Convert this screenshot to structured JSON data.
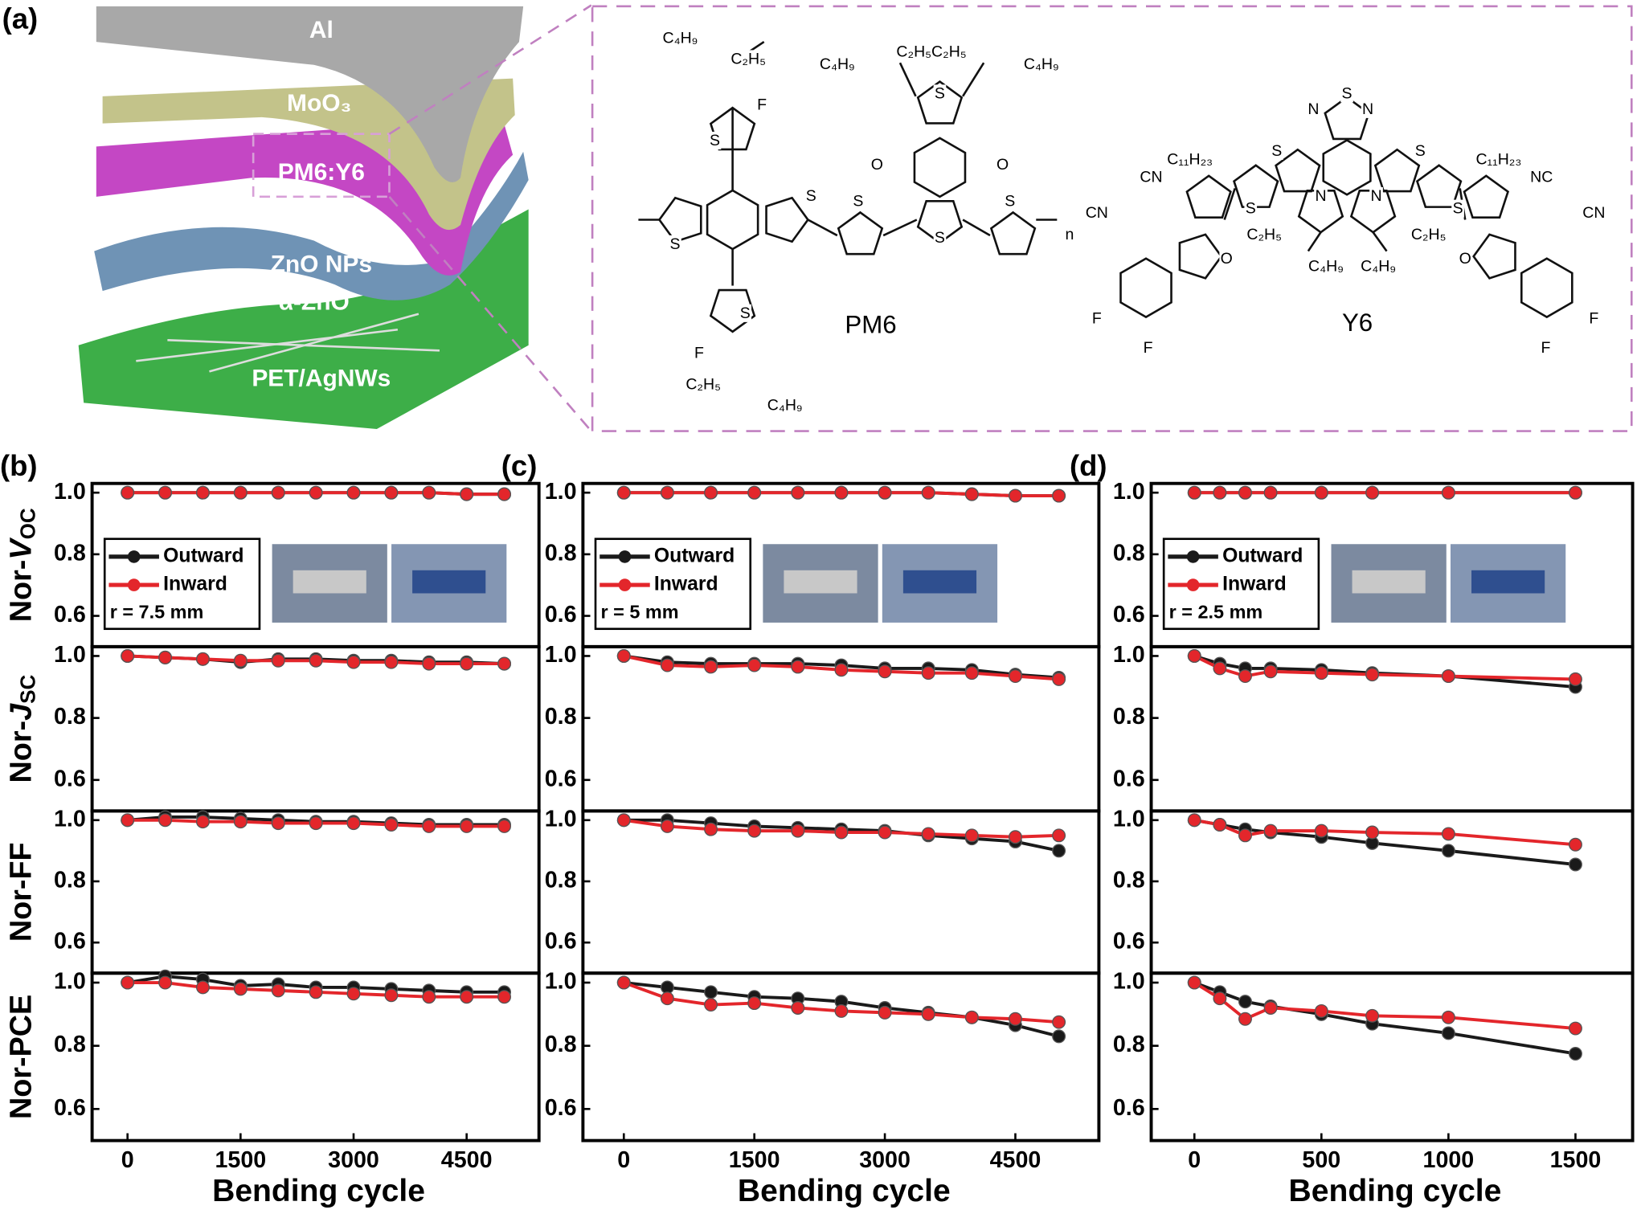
{
  "diagram": {
    "panel_label": "(a)",
    "layers": [
      "Al",
      "MoO₃",
      "PM6:Y6",
      "ZnO NPs",
      "α-ZnO",
      "PET/AgNWs"
    ],
    "molecules": [
      "PM6",
      "Y6"
    ],
    "structure_labels": [
      "C₄H₉",
      "C₂H₅",
      "F",
      "S",
      "S",
      "S",
      "S",
      "C₄H₉",
      "C₂H₅C₂H₅",
      "C₄H₉",
      "S",
      "O",
      "O",
      "S",
      "S",
      "n",
      "F",
      "C₂H₅",
      "C₄H₉",
      "S",
      "S",
      "N",
      "N",
      "S",
      "S",
      "C₁₁H₂₃",
      "C₁₁H₂₃",
      "CN",
      "NC",
      "S",
      "S",
      "N",
      "N",
      "CN",
      "CN",
      "C₂H₅",
      "C₂H₅",
      "C₄H₉",
      "C₄H₉",
      "O",
      "O",
      "F",
      "F",
      "F",
      "F"
    ]
  },
  "chart_data": [
    {
      "type": "line",
      "panel_label": "(b)",
      "xlabel": "Bending cycle",
      "annotation": "r = 7.5 mm",
      "x": [
        0,
        500,
        1000,
        1500,
        2000,
        2500,
        3000,
        3500,
        4000,
        4500,
        5000
      ],
      "xlim": [
        -470,
        5460
      ],
      "xticks": [
        0,
        1500,
        3000,
        4500
      ],
      "series": [
        {
          "name": "Outward",
          "color": "#1a1a1a"
        },
        {
          "name": "Inward",
          "color": "#e3262b"
        }
      ],
      "subplots": [
        {
          "ylabel": [
            "Nor-",
            "V",
            "OC"
          ],
          "ylim": [
            0.5,
            1.03
          ],
          "yticks": [
            0.6,
            0.8,
            {
              "value": 1,
              "label": "1.0"
            }
          ],
          "values": [
            [
              1,
              1,
              1,
              1,
              1,
              1,
              1,
              1,
              1,
              0.995,
              0.995
            ],
            [
              1,
              1,
              1,
              1,
              1,
              1,
              1,
              1,
              1,
              0.995,
              0.995
            ]
          ]
        },
        {
          "ylabel": [
            "Nor-",
            "J",
            "SC"
          ],
          "ylim": [
            0.5,
            1.03
          ],
          "yticks": [
            0.6,
            0.8,
            {
              "value": 1,
              "label": "1.0"
            }
          ],
          "values": [
            [
              1,
              0.995,
              0.99,
              0.98,
              0.99,
              0.99,
              0.985,
              0.985,
              0.98,
              0.98,
              0.975
            ],
            [
              1,
              0.995,
              0.99,
              0.985,
              0.985,
              0.985,
              0.98,
              0.98,
              0.975,
              0.975,
              0.975
            ]
          ]
        },
        {
          "ylabel": [
            "Nor-FF"
          ],
          "ylim": [
            0.5,
            1.03
          ],
          "yticks": [
            0.6,
            0.8,
            {
              "value": 1,
              "label": "1.0"
            }
          ],
          "values": [
            [
              1,
              1.01,
              1.01,
              1.005,
              1,
              0.995,
              0.995,
              0.99,
              0.985,
              0.985,
              0.985
            ],
            [
              1,
              1,
              0.995,
              0.995,
              0.99,
              0.99,
              0.99,
              0.985,
              0.98,
              0.98,
              0.98
            ]
          ]
        },
        {
          "ylabel": [
            "Nor-PCE"
          ],
          "ylim": [
            0.5,
            1.03
          ],
          "yticks": [
            0.6,
            0.8,
            {
              "value": 1,
              "label": "1.0"
            }
          ],
          "values": [
            [
              1,
              1.02,
              1.01,
              0.99,
              0.995,
              0.985,
              0.985,
              0.98,
              0.975,
              0.97,
              0.97
            ],
            [
              1,
              1,
              0.985,
              0.98,
              0.975,
              0.97,
              0.965,
              0.96,
              0.955,
              0.955,
              0.955
            ]
          ]
        }
      ]
    },
    {
      "type": "line",
      "panel_label": "(c)",
      "xlabel": "Bending cycle",
      "annotation": "r = 5 mm",
      "x": [
        0,
        500,
        1000,
        1500,
        2000,
        2500,
        3000,
        3500,
        4000,
        4500,
        5000
      ],
      "xlim": [
        -470,
        5460
      ],
      "xticks": [
        0,
        1500,
        3000,
        4500
      ],
      "series": [
        {
          "name": "Outward",
          "color": "#1a1a1a"
        },
        {
          "name": "Inward",
          "color": "#e3262b"
        }
      ],
      "subplots": [
        {
          "ylim": [
            0.5,
            1.03
          ],
          "yticks": [
            0.6,
            0.8,
            {
              "value": 1,
              "label": "1.0"
            }
          ],
          "values": [
            [
              1,
              1,
              1,
              1,
              1,
              1,
              1,
              1,
              0.995,
              0.99,
              0.99
            ],
            [
              1,
              1,
              1,
              1,
              1,
              1,
              1,
              1,
              0.995,
              0.99,
              0.99
            ]
          ]
        },
        {
          "ylim": [
            0.5,
            1.03
          ],
          "yticks": [
            0.6,
            0.8,
            {
              "value": 1,
              "label": "1.0"
            }
          ],
          "values": [
            [
              1,
              0.98,
              0.975,
              0.975,
              0.975,
              0.97,
              0.96,
              0.96,
              0.955,
              0.94,
              0.93
            ],
            [
              1,
              0.97,
              0.965,
              0.97,
              0.965,
              0.955,
              0.95,
              0.945,
              0.945,
              0.935,
              0.925
            ]
          ]
        },
        {
          "ylim": [
            0.5,
            1.03
          ],
          "yticks": [
            0.6,
            0.8,
            {
              "value": 1,
              "label": "1.0"
            }
          ],
          "values": [
            [
              1,
              1,
              0.99,
              0.98,
              0.975,
              0.97,
              0.965,
              0.95,
              0.94,
              0.93,
              0.9
            ],
            [
              1,
              0.98,
              0.97,
              0.965,
              0.965,
              0.96,
              0.96,
              0.955,
              0.95,
              0.945,
              0.95
            ]
          ]
        },
        {
          "ylim": [
            0.5,
            1.03
          ],
          "yticks": [
            0.6,
            0.8,
            {
              "value": 1,
              "label": "1.0"
            }
          ],
          "values": [
            [
              1,
              0.985,
              0.97,
              0.955,
              0.95,
              0.94,
              0.92,
              0.905,
              0.89,
              0.865,
              0.83
            ],
            [
              1,
              0.95,
              0.93,
              0.935,
              0.92,
              0.91,
              0.905,
              0.9,
              0.89,
              0.885,
              0.875
            ]
          ]
        }
      ]
    },
    {
      "type": "line",
      "panel_label": "(d)",
      "xlabel": "Bending cycle",
      "annotation": "r = 2.5 mm",
      "x": [
        0,
        100,
        200,
        300,
        500,
        700,
        1000,
        1500
      ],
      "xlim": [
        -170,
        1725
      ],
      "xticks": [
        0,
        500,
        1000,
        1500
      ],
      "series": [
        {
          "name": "Outward",
          "color": "#1a1a1a"
        },
        {
          "name": "Inward",
          "color": "#e3262b"
        }
      ],
      "subplots": [
        {
          "ylim": [
            0.5,
            1.03
          ],
          "yticks": [
            0.6,
            0.8,
            {
              "value": 1,
              "label": "1.0"
            }
          ],
          "values": [
            [
              1,
              1,
              1,
              1,
              1,
              1,
              1,
              1
            ],
            [
              1,
              1,
              1,
              1,
              1,
              1,
              1,
              1
            ]
          ]
        },
        {
          "ylim": [
            0.5,
            1.03
          ],
          "yticks": [
            0.6,
            0.8,
            {
              "value": 1,
              "label": "1.0"
            }
          ],
          "values": [
            [
              1,
              0.975,
              0.96,
              0.96,
              0.955,
              0.945,
              0.935,
              0.9
            ],
            [
              1,
              0.96,
              0.935,
              0.95,
              0.945,
              0.94,
              0.935,
              0.925
            ]
          ]
        },
        {
          "ylim": [
            0.5,
            1.03
          ],
          "yticks": [
            0.6,
            0.8,
            {
              "value": 1,
              "label": "1.0"
            }
          ],
          "values": [
            [
              1,
              0.985,
              0.97,
              0.96,
              0.945,
              0.925,
              0.9,
              0.855
            ],
            [
              1,
              0.985,
              0.95,
              0.965,
              0.965,
              0.96,
              0.955,
              0.92
            ]
          ]
        },
        {
          "ylim": [
            0.5,
            1.03
          ],
          "yticks": [
            0.6,
            0.8,
            {
              "value": 1,
              "label": "1.0"
            }
          ],
          "values": [
            [
              1,
              0.97,
              0.94,
              0.925,
              0.9,
              0.87,
              0.84,
              0.775
            ],
            [
              1,
              0.95,
              0.885,
              0.92,
              0.91,
              0.895,
              0.89,
              0.855
            ]
          ]
        }
      ]
    }
  ]
}
